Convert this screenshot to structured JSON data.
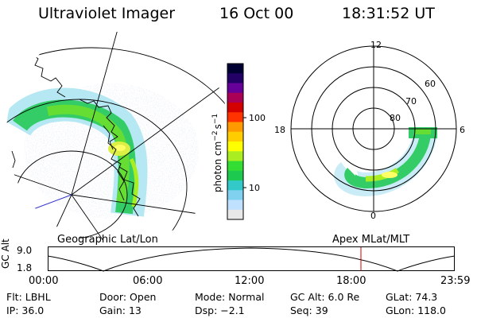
{
  "header": {
    "title": "Ultraviolet Imager",
    "date": "16 Oct 00",
    "time": "18:31:52 UT"
  },
  "geo_panel": {
    "label": "Geographic Lat/Lon"
  },
  "polar_panel": {
    "label": "Apex MLat/MLT",
    "mlt_labels": [
      "12",
      "18",
      "6",
      "0"
    ],
    "lat_labels": [
      "60",
      "70",
      "80"
    ]
  },
  "colorbar": {
    "unit_label": "photon cm",
    "unit_exp1": "−2",
    "unit_mid": "s",
    "unit_exp2": "−1",
    "tick_100": "100",
    "tick_10": "10",
    "colors": [
      "#e8e8e8",
      "#bfe0ff",
      "#80d0f0",
      "#33c9c9",
      "#1ec94f",
      "#33dd33",
      "#aaee22",
      "#ffff00",
      "#ffcc00",
      "#ff9900",
      "#ff3300",
      "#d40000",
      "#aa0055",
      "#660099",
      "#220066",
      "#000033"
    ]
  },
  "altitude_plot": {
    "ylabel": "GC Alt",
    "ymax": "9.0",
    "ymin": "1.8",
    "x_ticks": [
      "00:00",
      "06:00",
      "12:00",
      "18:00",
      "23:59"
    ],
    "marker_color": "#cc0000"
  },
  "footer": [
    {
      "label": "Flt:",
      "value": "LBHL"
    },
    {
      "label": "Door:",
      "value": "Open"
    },
    {
      "label": "Mode:",
      "value": "Normal"
    },
    {
      "label": "GC Alt:",
      "value": "6.0 Re"
    },
    {
      "label": "GLat:",
      "value": "74.3"
    },
    {
      "label": "IP:",
      "value": "36.0"
    },
    {
      "label": "Gain:",
      "value": "13"
    },
    {
      "label": "Dsp:",
      "value": "−2.1"
    },
    {
      "label": "Seq:",
      "value": "39"
    },
    {
      "label": "GLon:",
      "value": "118.0"
    }
  ]
}
